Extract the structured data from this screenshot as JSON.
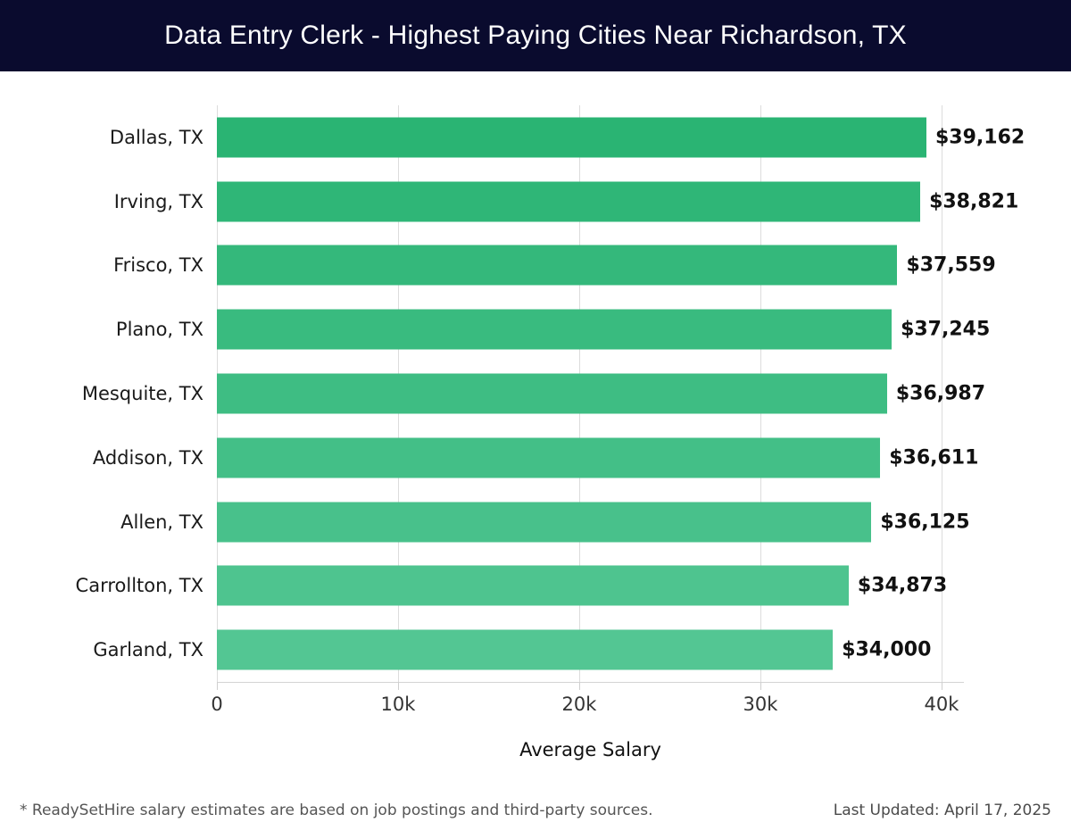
{
  "header": {
    "background": "#0a0b2e",
    "text_color": "#ffffff"
  },
  "chart_data": {
    "type": "bar",
    "orientation": "horizontal",
    "title": "Data Entry Clerk - Highest Paying Cities Near Richardson, TX",
    "categories": [
      "Dallas, TX",
      "Irving, TX",
      "Frisco, TX",
      "Plano, TX",
      "Mesquite, TX",
      "Addison, TX",
      "Allen, TX",
      "Carrollton, TX",
      "Garland, TX"
    ],
    "values": [
      39162,
      38821,
      37559,
      37245,
      36987,
      36611,
      36125,
      34873,
      34000
    ],
    "value_labels": [
      "$39,162",
      "$38,821",
      "$37,559",
      "$37,245",
      "$36,987",
      "$36,611",
      "$36,125",
      "$34,873",
      "$34,000"
    ],
    "bar_colors": [
      "#2ab473",
      "#2fb677",
      "#34b87b",
      "#39bb7f",
      "#3ebd83",
      "#43bf87",
      "#48c18b",
      "#4ec48f",
      "#53c693"
    ],
    "xlabel": "Average Salary",
    "x_tick_values": [
      0,
      10000,
      20000,
      30000,
      40000
    ],
    "x_tick_labels": [
      "0",
      "10k",
      "20k",
      "30k",
      "40k"
    ],
    "xlim": [
      0,
      40000
    ],
    "grid": "vertical",
    "gridline_color": "#dcdcdc",
    "legend": "none"
  },
  "footer": {
    "note": "* ReadySetHire salary estimates are based on job postings and third-party sources.",
    "last_updated": "Last Updated: April 17, 2025"
  }
}
